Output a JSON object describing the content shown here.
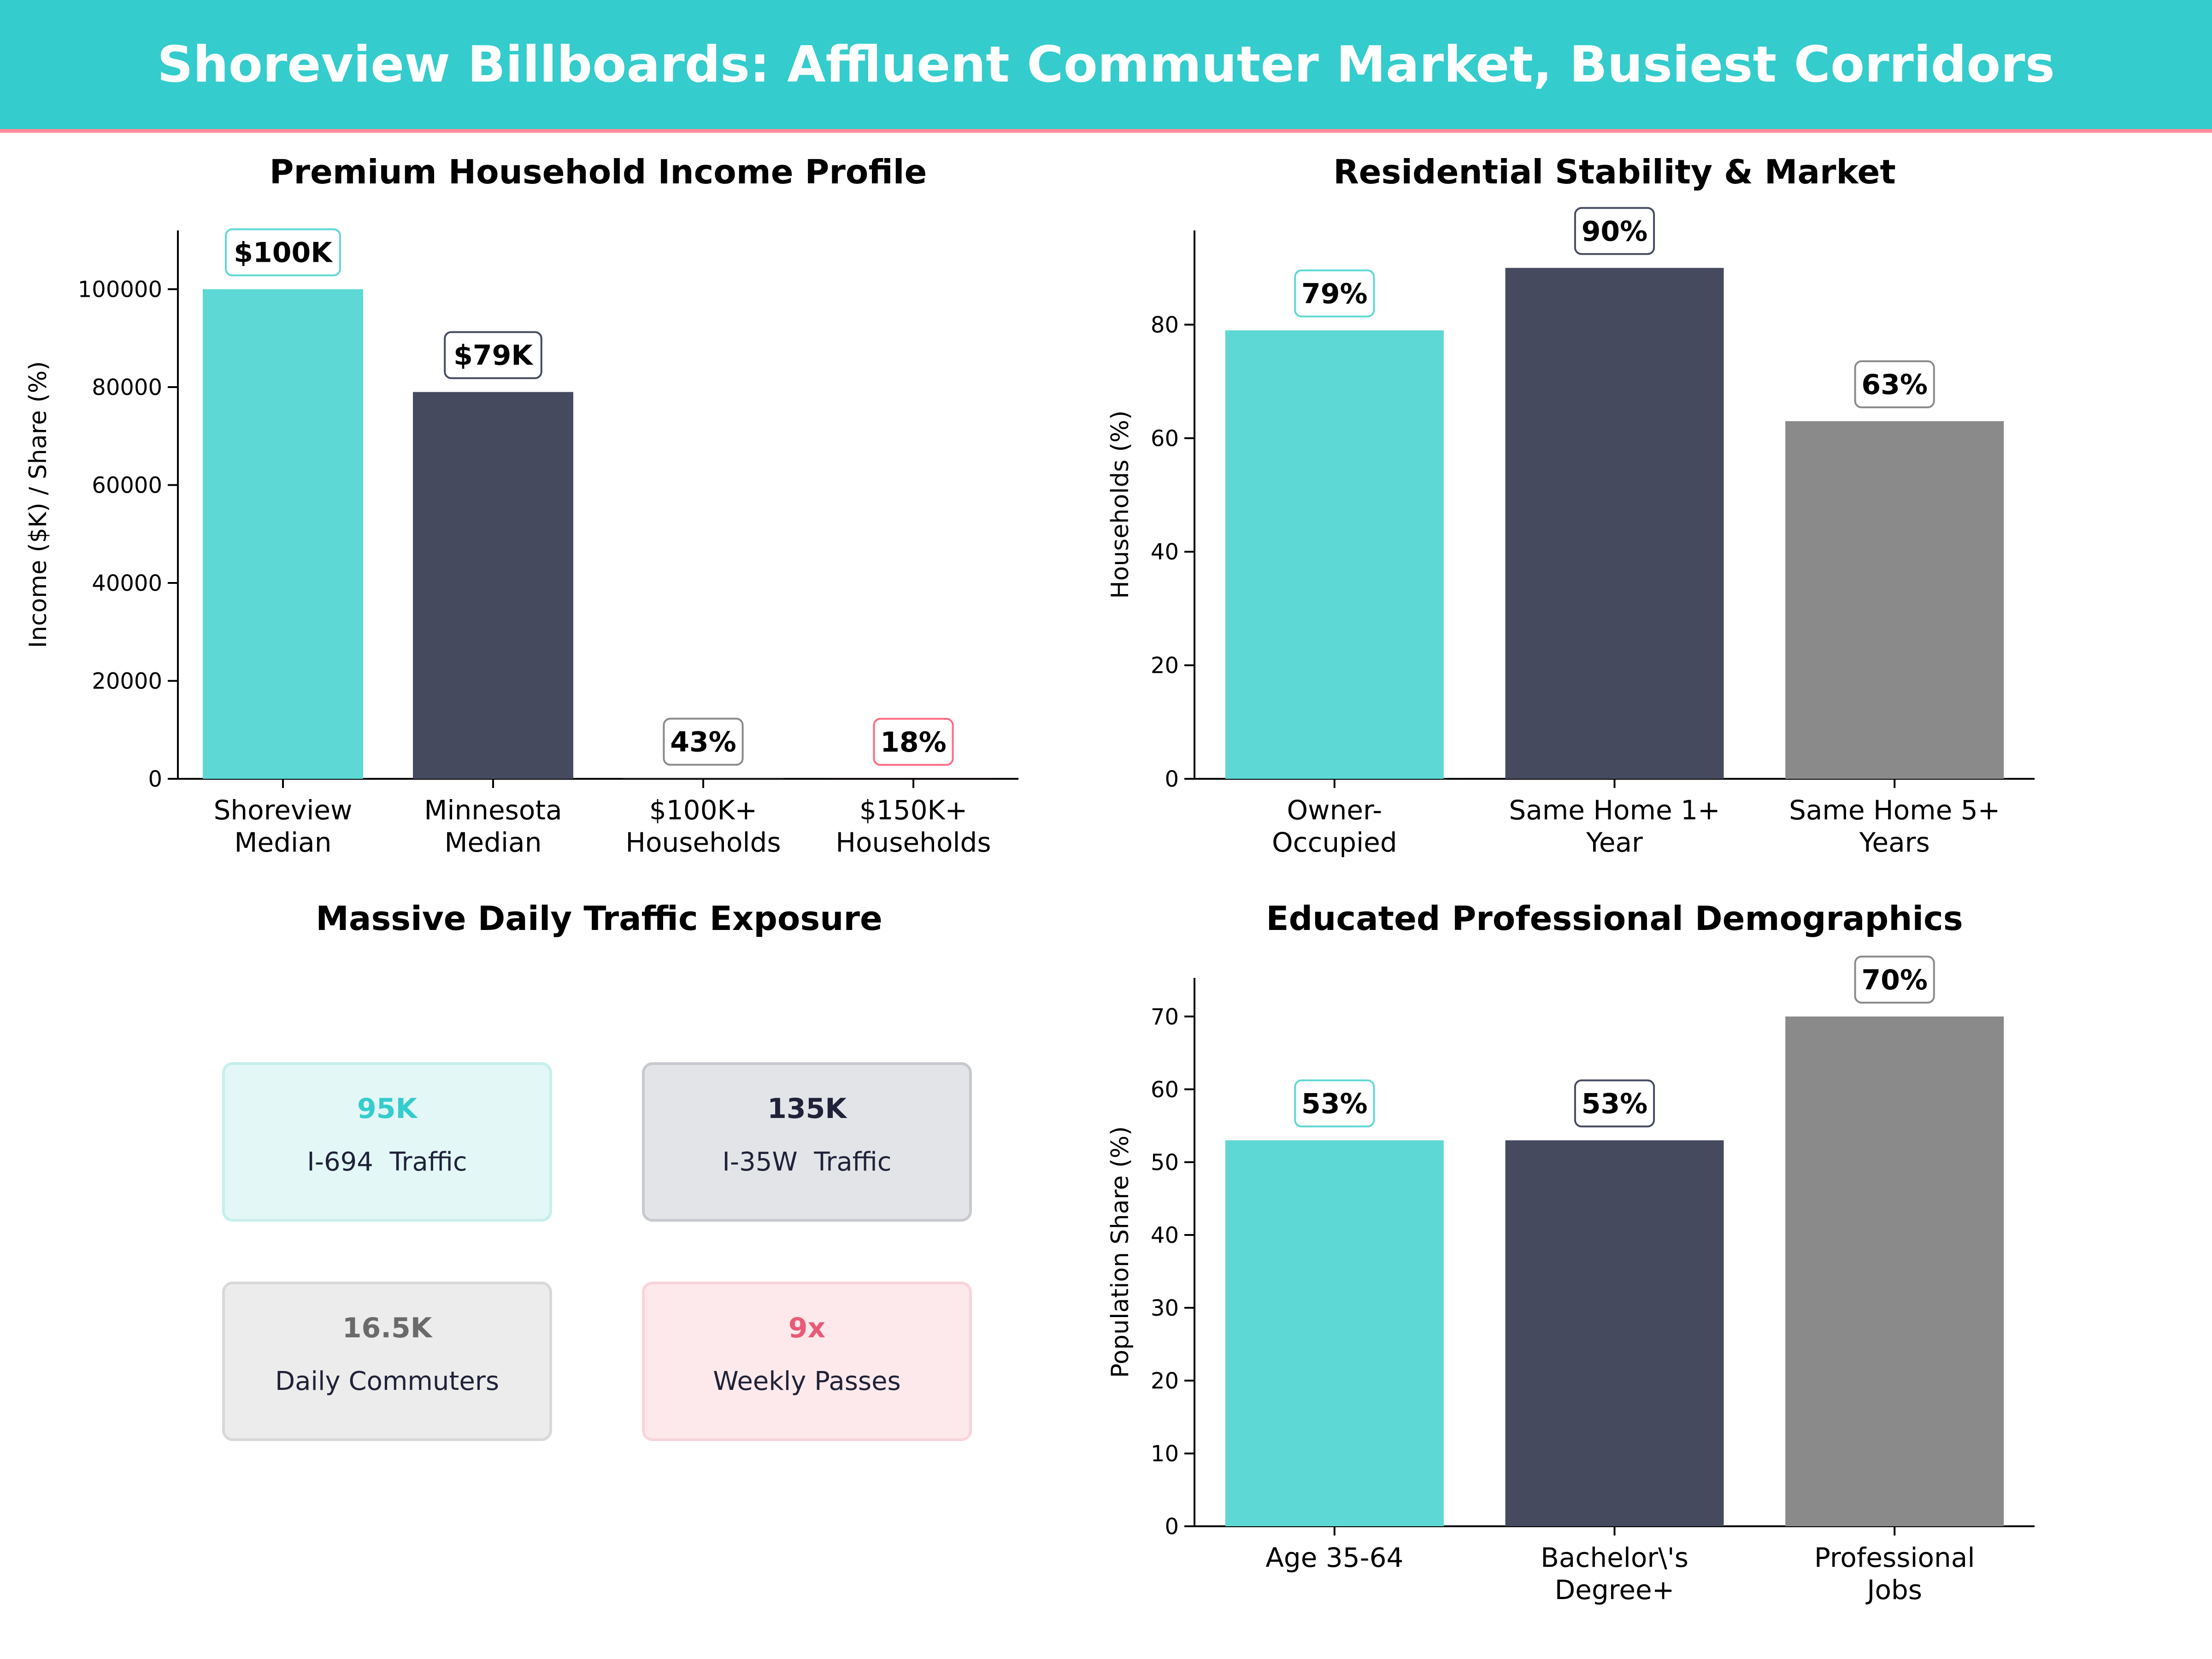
{
  "banner": {
    "title": "Shoreview Billboards: Affluent Commuter Market, Busiest Corridors"
  },
  "chart_data": [
    {
      "type": "bar",
      "title": "Premium Household Income Profile",
      "ylabel": "Income ($K) / Share (%)",
      "categories": [
        [
          "Shoreview",
          "Median"
        ],
        [
          "Minnesota",
          "Median"
        ],
        [
          "$100K+",
          "Households"
        ],
        [
          "$150K+",
          "Households"
        ]
      ],
      "values": [
        100000,
        79000,
        43,
        18
      ],
      "data_labels": [
        "$100K",
        "$79K",
        "43%",
        "18%"
      ],
      "bar_colors": [
        "#5ed8d4",
        "#454a5f",
        "#8a8a8a",
        "#ff6b84"
      ],
      "label_border_colors": [
        "#5ed8d4",
        "#454a5f",
        "#8a8a8a",
        "#ff6b84"
      ],
      "ylim": [
        0,
        112000
      ],
      "yticks": [
        0,
        20000,
        40000,
        60000,
        80000,
        100000
      ]
    },
    {
      "type": "bar",
      "title": "Residential Stability & Market",
      "ylabel": "Households (%)",
      "categories": [
        [
          "Owner-",
          "Occupied"
        ],
        [
          "Same Home 1+",
          "Year"
        ],
        [
          "Same Home 5+",
          "Years"
        ]
      ],
      "values": [
        79,
        90,
        63
      ],
      "data_labels": [
        "79%",
        "90%",
        "63%"
      ],
      "bar_colors": [
        "#5ed8d4",
        "#454a5f",
        "#8a8a8a"
      ],
      "label_border_colors": [
        "#5ed8d4",
        "#454a5f",
        "#8a8a8a"
      ],
      "ylim": [
        0,
        96.6
      ],
      "yticks": [
        0,
        20,
        40,
        60,
        80
      ]
    },
    {
      "type": "table",
      "title": "Massive Daily Traffic Exposure",
      "cards": [
        {
          "value": "95K",
          "label": "I-694  Traffic",
          "accent": "#34cccc",
          "fill": "#e3f7f6",
          "border": "#c6efec"
        },
        {
          "value": "135K",
          "label": "I-35W  Traffic",
          "accent": "#1f2238",
          "fill": "#e3e4e8",
          "border": "#c8c9cf"
        },
        {
          "value": "16.5K",
          "label": "Daily Commuters",
          "accent": "#6a6a6a",
          "fill": "#ececec",
          "border": "#d8d8d8"
        },
        {
          "value": "9x",
          "label": "Weekly Passes",
          "accent": "#ea5a76",
          "fill": "#fde9ec",
          "border": "#f9d4db"
        }
      ],
      "label_color": "#1f2238"
    },
    {
      "type": "bar",
      "title": "Educated Professional Demographics",
      "ylabel": "Population Share (%)",
      "categories": [
        [
          "Age 35-64"
        ],
        [
          "Bachelor\\'s",
          "Degree+"
        ],
        [
          "Professional",
          "Jobs"
        ]
      ],
      "values": [
        53,
        53,
        70
      ],
      "data_labels": [
        "53%",
        "53%",
        "70%"
      ],
      "bar_colors": [
        "#5ed8d4",
        "#454a5f",
        "#8a8a8a"
      ],
      "label_border_colors": [
        "#5ed8d4",
        "#454a5f",
        "#8a8a8a"
      ],
      "ylim": [
        0,
        75.3
      ],
      "yticks": [
        0,
        10,
        20,
        30,
        40,
        50,
        60,
        70
      ]
    }
  ]
}
